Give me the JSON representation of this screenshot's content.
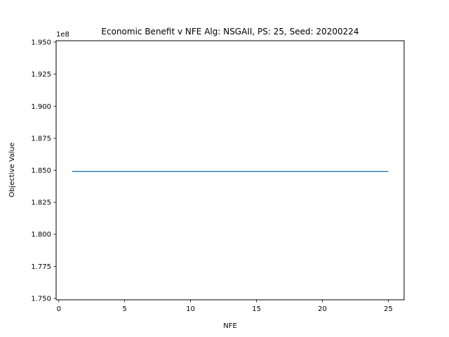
{
  "chart_data": {
    "type": "line",
    "title": "Economic Benefit v NFE Alg: NSGAII, PS: 25, Seed: 20200224",
    "xlabel": "NFE",
    "ylabel": "Objective Value",
    "y_offset_label": "1e8",
    "xlim": [
      -0.2,
      26.2
    ],
    "ylim": [
      1.7489,
      1.9511
    ],
    "x_ticks": [
      0,
      5,
      10,
      15,
      20,
      25
    ],
    "x_tick_labels": [
      "0",
      "5",
      "10",
      "15",
      "20",
      "25"
    ],
    "y_ticks": [
      1.75,
      1.775,
      1.8,
      1.825,
      1.85,
      1.875,
      1.9,
      1.925,
      1.95
    ],
    "y_tick_labels": [
      "1.750",
      "1.775",
      "1.800",
      "1.825",
      "1.850",
      "1.875",
      "1.900",
      "1.925",
      "1.950"
    ],
    "grid": false,
    "series": [
      {
        "color": "#1f77b4",
        "x": [
          1,
          2,
          3,
          4,
          5,
          6,
          7,
          8,
          9,
          10,
          11,
          12,
          13,
          14,
          15,
          16,
          17,
          18,
          19,
          20,
          21,
          22,
          23,
          24,
          25
        ],
        "y": [
          1.849,
          1.849,
          1.849,
          1.849,
          1.849,
          1.849,
          1.849,
          1.849,
          1.849,
          1.849,
          1.849,
          1.849,
          1.849,
          1.849,
          1.849,
          1.849,
          1.849,
          1.849,
          1.849,
          1.849,
          1.849,
          1.849,
          1.849,
          1.849,
          1.849
        ]
      }
    ]
  }
}
